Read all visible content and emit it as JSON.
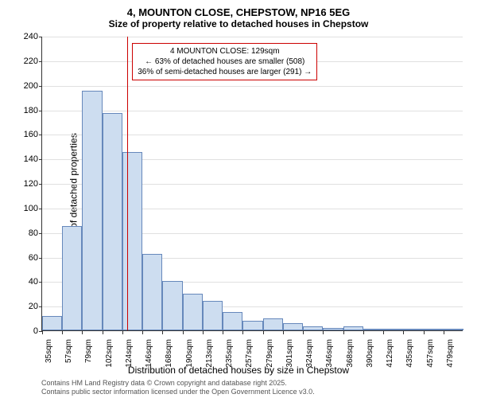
{
  "title": "4, MOUNTON CLOSE, CHEPSTOW, NP16 5EG",
  "subtitle": "Size of property relative to detached houses in Chepstow",
  "ylabel": "Number of detached properties",
  "xlabel": "Distribution of detached houses by size in Chepstow",
  "chart": {
    "type": "histogram",
    "ylim": [
      0,
      240
    ],
    "ytick_step": 20,
    "yticks": [
      0,
      20,
      40,
      60,
      80,
      100,
      120,
      140,
      160,
      180,
      200,
      220,
      240
    ],
    "xticks": [
      "35sqm",
      "57sqm",
      "79sqm",
      "102sqm",
      "124sqm",
      "146sqm",
      "168sqm",
      "190sqm",
      "213sqm",
      "235sqm",
      "257sqm",
      "279sqm",
      "301sqm",
      "324sqm",
      "346sqm",
      "368sqm",
      "390sqm",
      "412sqm",
      "435sqm",
      "457sqm",
      "479sqm"
    ],
    "bar_color": "#cdddf0",
    "bar_border": "#6688bb",
    "grid_color": "#e0e0e0",
    "background_color": "#ffffff",
    "values": [
      12,
      85,
      195,
      177,
      145,
      62,
      40,
      30,
      24,
      15,
      8,
      10,
      6,
      3,
      2,
      3,
      1,
      0,
      1,
      0,
      1
    ],
    "bar_width": 1.0
  },
  "marker": {
    "color": "#cc0000",
    "position_index": 4.25,
    "label_line1": "4 MOUNTON CLOSE: 129sqm",
    "label_line2": "← 63% of detached houses are smaller (508)",
    "label_line3": "36% of semi-detached houses are larger (291) →",
    "box_border": "#cc0000"
  },
  "attribution": {
    "line1": "Contains HM Land Registry data © Crown copyright and database right 2025.",
    "line2": "Contains public sector information licensed under the Open Government Licence v3.0."
  }
}
